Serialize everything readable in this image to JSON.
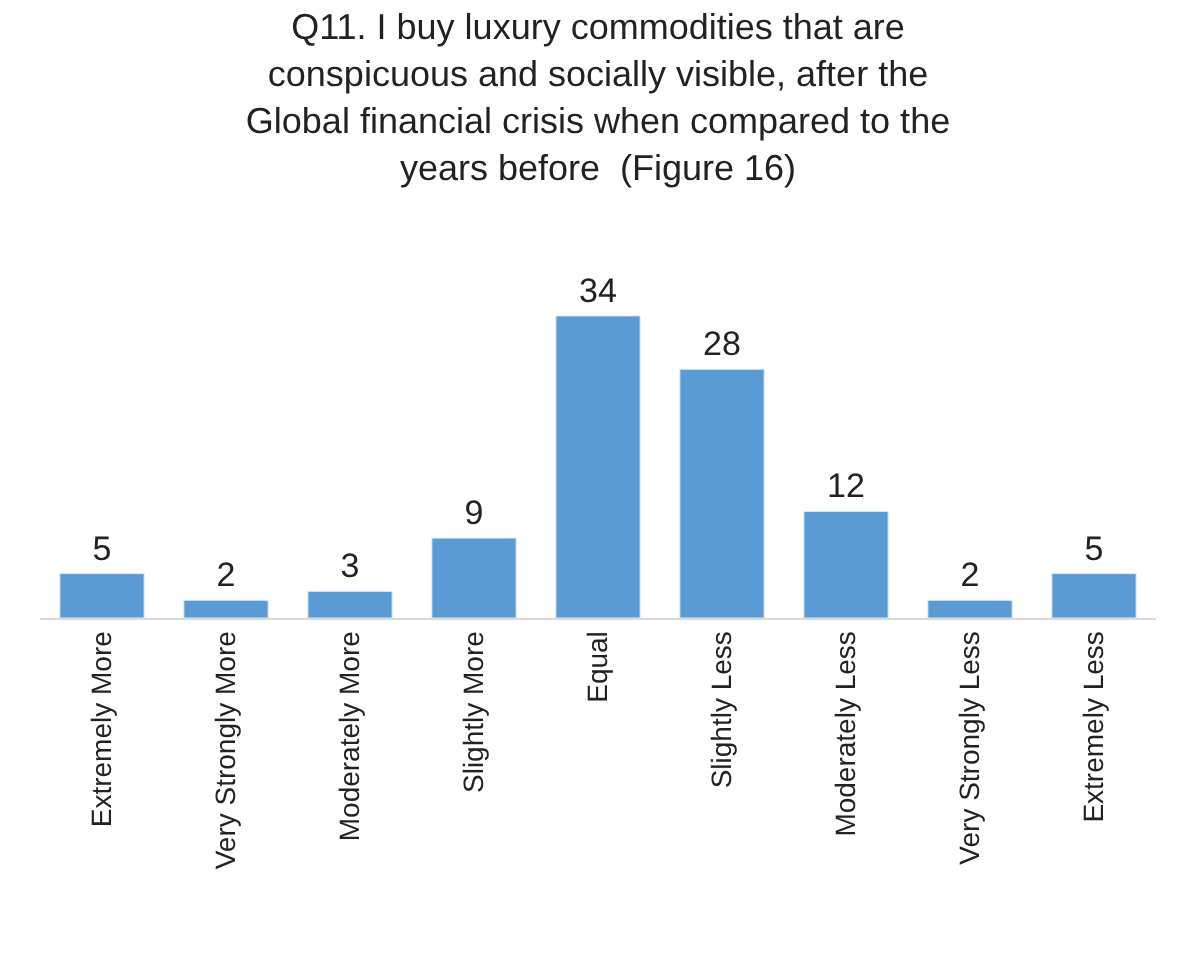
{
  "chart_data": {
    "type": "bar",
    "title": "Q11. I buy luxury commodities that are\nconspicuous and socially visible, after the\nGlobal financial crisis when compared to the\nyears before  (Figure 16)",
    "categories": [
      "Extremely More",
      "Very Strongly More",
      "Moderately More",
      "Slightly More",
      "Equal",
      "Slightly Less",
      "Moderately Less",
      "Very Strongly Less",
      "Extremely Less"
    ],
    "values": [
      5,
      2,
      3,
      9,
      34,
      28,
      12,
      2,
      5
    ],
    "color": "#5b9bd5",
    "data_labels": true
  }
}
